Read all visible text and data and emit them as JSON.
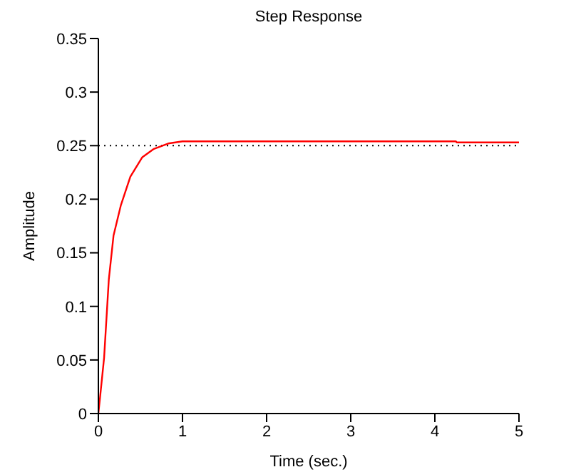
{
  "chart_data": {
    "type": "line",
    "title": "Step Response",
    "xlabel": "Time (sec.)",
    "ylabel": "Amplitude",
    "series": [
      {
        "color": "#ff0000",
        "x": [
          0,
          0.02,
          0.068,
          0.124,
          0.18,
          0.266,
          0.38,
          0.52,
          0.66,
          0.83,
          1.0,
          1.5,
          2,
          3,
          4,
          4.25,
          4.26,
          5
        ],
        "values": [
          0,
          0.015,
          0.052,
          0.125,
          0.166,
          0.194,
          0.221,
          0.239,
          0.247,
          0.252,
          0.254,
          0.254,
          0.254,
          0.254,
          0.254,
          0.254,
          0.253,
          0.253
        ]
      }
    ],
    "xlim": [
      0,
      5
    ],
    "xticks": [
      0,
      1,
      2,
      3,
      4,
      5
    ],
    "ylim": [
      0,
      0.35
    ],
    "yticks": [
      0,
      0.05,
      0.1,
      0.15,
      0.2,
      0.25,
      0.3,
      0.35
    ],
    "ref_lines": [
      {
        "axis": "y",
        "value": 0.25,
        "color": "#000000",
        "line_style": "dotted"
      }
    ],
    "grid": false,
    "legend": false,
    "marker": "none",
    "line_style": "solid"
  }
}
